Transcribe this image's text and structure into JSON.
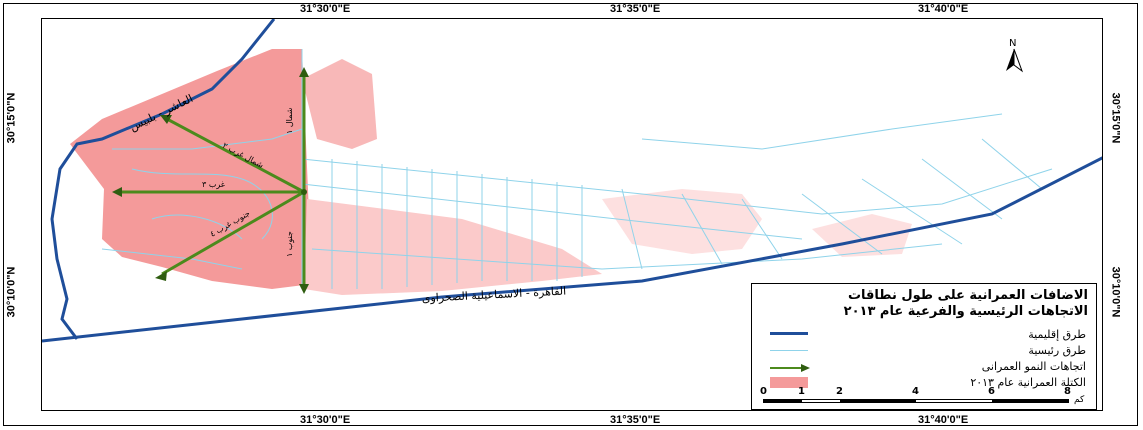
{
  "map": {
    "top_labels": [
      "31°30'0\"E",
      "31°35'0\"E",
      "31°40'0\"E"
    ],
    "bottom_labels": [
      "31°30'0\"E",
      "31°35'0\"E",
      "31°40'0\"E"
    ],
    "left_labels": [
      "30°15'0\"N",
      "30°10'0\"N"
    ],
    "right_labels": [
      "30°15'0\"N",
      "30°10'0\"N"
    ],
    "north_label": "N",
    "road_label_1": "القاهرة - الاسماعيلية الصحراوى",
    "road_label_2": "العاشر - بلبيس",
    "direction_labels": [
      "شمال ١",
      "شمال غرب ٢",
      "غرب ٣",
      "جنوب غرب ٤",
      "جنوب ١"
    ],
    "colors": {
      "regional_road": "#1f4e9a",
      "main_road": "#8fd3ea",
      "growth_arrow": "#4c8a1c",
      "urban_mass": "#f49a9a"
    }
  },
  "legend": {
    "title_line1": "الاضافات العمرانية على طول نطاقات",
    "title_line2": "الاتجاهات الرئيسية والفرعية عام ٢٠١٣",
    "items": [
      {
        "label": "طرق إقليمية",
        "symbol": "regional-road"
      },
      {
        "label": "طرق رئيسية",
        "symbol": "main-road"
      },
      {
        "label": "اتجاهات النمو العمرانى",
        "symbol": "growth-arrow"
      },
      {
        "label": "الكتلة العمرانية عام ٢٠١٣",
        "symbol": "urban-mass"
      }
    ],
    "scale_ticks": [
      "0",
      "1",
      "2",
      "4",
      "6",
      "8"
    ],
    "scale_unit": "كم"
  }
}
